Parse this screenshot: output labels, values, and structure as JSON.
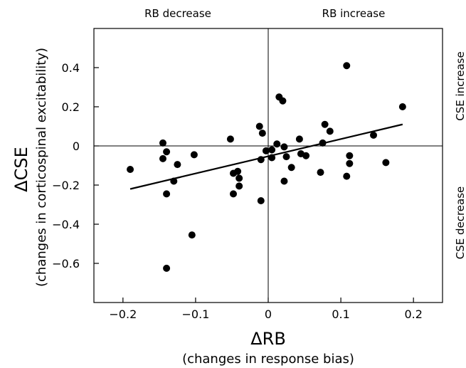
{
  "chart_data": {
    "type": "scatter",
    "title": "",
    "xlabel": "ΔRB",
    "xlabel_sub": "(changes in response bias)",
    "ylabel": "ΔCSE",
    "ylabel_sub": "(changes in corticospinal excitability)",
    "xlim": [
      -0.24,
      0.24
    ],
    "ylim": [
      -0.8,
      0.6
    ],
    "xticks": [
      -0.2,
      -0.1,
      0,
      0.1,
      0.2
    ],
    "xtick_labels": [
      "−0.2",
      "−0.1",
      "0",
      "0.1",
      "0.2"
    ],
    "yticks": [
      -0.6,
      -0.4,
      -0.2,
      0,
      0.2,
      0.4
    ],
    "ytick_labels": [
      "−0.6",
      "−0.4",
      "−0.2",
      "0",
      "0.2",
      "0.4"
    ],
    "grid": false,
    "quadrant_labels": {
      "top_left": "RB decrease",
      "top_right": "RB increase",
      "right_top": "CSE increase",
      "right_bottom": "CSE decrease"
    },
    "fit_line": {
      "x": [
        -0.19,
        0.185
      ],
      "y": [
        -0.22,
        0.11
      ]
    },
    "points": [
      {
        "x": -0.19,
        "y": -0.12
      },
      {
        "x": -0.145,
        "y": 0.015
      },
      {
        "x": -0.145,
        "y": -0.065
      },
      {
        "x": -0.14,
        "y": -0.03
      },
      {
        "x": -0.14,
        "y": -0.245
      },
      {
        "x": -0.14,
        "y": -0.625
      },
      {
        "x": -0.125,
        "y": -0.095
      },
      {
        "x": -0.13,
        "y": -0.18
      },
      {
        "x": -0.102,
        "y": -0.045
      },
      {
        "x": -0.105,
        "y": -0.455
      },
      {
        "x": -0.052,
        "y": 0.035
      },
      {
        "x": -0.048,
        "y": -0.14
      },
      {
        "x": -0.048,
        "y": -0.245
      },
      {
        "x": -0.042,
        "y": -0.13
      },
      {
        "x": -0.04,
        "y": -0.165
      },
      {
        "x": -0.04,
        "y": -0.205
      },
      {
        "x": -0.012,
        "y": 0.1
      },
      {
        "x": -0.008,
        "y": 0.065
      },
      {
        "x": -0.01,
        "y": -0.07
      },
      {
        "x": -0.01,
        "y": -0.28
      },
      {
        "x": -0.003,
        "y": -0.025
      },
      {
        "x": 0.005,
        "y": -0.02
      },
      {
        "x": 0.005,
        "y": -0.06
      },
      {
        "x": 0.012,
        "y": 0.01
      },
      {
        "x": 0.015,
        "y": 0.25
      },
      {
        "x": 0.02,
        "y": 0.23
      },
      {
        "x": 0.022,
        "y": -0.005
      },
      {
        "x": 0.025,
        "y": -0.055
      },
      {
        "x": 0.022,
        "y": -0.18
      },
      {
        "x": 0.032,
        "y": -0.11
      },
      {
        "x": 0.043,
        "y": 0.035
      },
      {
        "x": 0.045,
        "y": -0.04
      },
      {
        "x": 0.052,
        "y": -0.05
      },
      {
        "x": 0.072,
        "y": -0.135
      },
      {
        "x": 0.075,
        "y": 0.015
      },
      {
        "x": 0.078,
        "y": 0.11
      },
      {
        "x": 0.085,
        "y": 0.075
      },
      {
        "x": 0.108,
        "y": 0.41
      },
      {
        "x": 0.108,
        "y": -0.155
      },
      {
        "x": 0.112,
        "y": -0.05
      },
      {
        "x": 0.112,
        "y": -0.09
      },
      {
        "x": 0.145,
        "y": 0.055
      },
      {
        "x": 0.162,
        "y": -0.085
      },
      {
        "x": 0.185,
        "y": 0.2
      }
    ]
  }
}
